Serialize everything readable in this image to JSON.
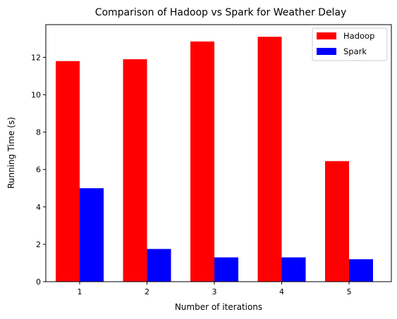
{
  "chart_data": {
    "type": "bar",
    "title": "Comparison of Hadoop vs Spark for Weather Delay",
    "xlabel": "Number of iterations",
    "ylabel": "Running Time (s)",
    "categories": [
      "1",
      "2",
      "3",
      "4",
      "5"
    ],
    "series": [
      {
        "name": "Hadoop",
        "color": "#ff0000",
        "values": [
          11.8,
          11.9,
          12.85,
          13.1,
          6.45
        ]
      },
      {
        "name": "Spark",
        "color": "#0000ff",
        "values": [
          5.0,
          1.75,
          1.3,
          1.3,
          1.2
        ]
      }
    ],
    "ylim": [
      0,
      13.75
    ],
    "yticks": [
      0,
      2,
      4,
      6,
      8,
      10,
      12
    ],
    "grid": false,
    "legend": "top-right"
  }
}
